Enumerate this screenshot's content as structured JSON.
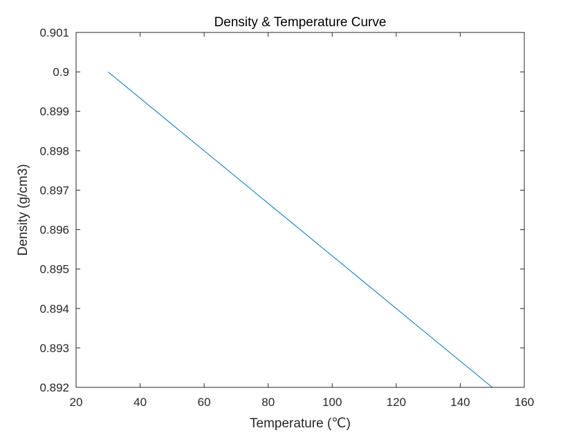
{
  "chart_data": {
    "type": "line",
    "title": "Density & Temperature Curve",
    "xlabel": "Temperature (℃)",
    "ylabel": "Density (g/cm3)",
    "xlim": [
      20,
      160
    ],
    "ylim": [
      0.892,
      0.901
    ],
    "xticks": [
      20,
      40,
      60,
      80,
      100,
      120,
      140,
      160
    ],
    "yticks": [
      0.892,
      0.893,
      0.894,
      0.895,
      0.896,
      0.897,
      0.898,
      0.899,
      0.9,
      0.901
    ],
    "xtick_labels": [
      "20",
      "40",
      "60",
      "80",
      "100",
      "120",
      "140",
      "160"
    ],
    "ytick_labels": [
      "0.892",
      "0.893",
      "0.894",
      "0.895",
      "0.896",
      "0.897",
      "0.898",
      "0.899",
      "0.9",
      "0.901"
    ],
    "grid": false,
    "legend": "none",
    "series": [
      {
        "color": "#0072BD",
        "x": [
          30,
          150
        ],
        "y": [
          0.9,
          0.892
        ]
      }
    ]
  }
}
